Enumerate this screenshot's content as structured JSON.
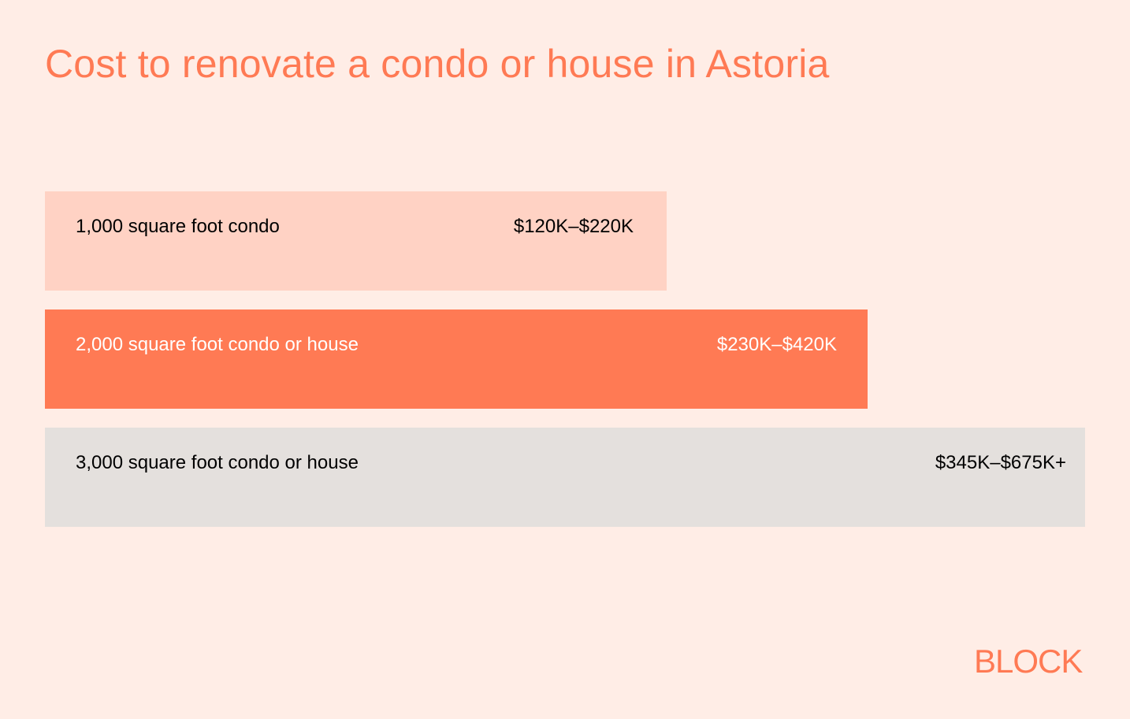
{
  "chart_data": {
    "type": "bar",
    "title": "Cost to renovate a condo or house in Astoria",
    "categories": [
      "1,000 square foot condo",
      "2,000 square foot condo or house",
      "3,000 square foot condo or house"
    ],
    "range_labels": [
      "$120K–$220K",
      "$230K–$420K",
      "$345K–$675K+"
    ],
    "series": [
      {
        "low": [
          120,
          230,
          345
        ],
        "high": [
          220,
          420,
          675
        ]
      }
    ],
    "units": "thousand USD",
    "bar_colors": [
      "#FFD2C4",
      "#FF7A54",
      "#E4E0DD"
    ],
    "text_colors": [
      "#000000",
      "#FFFFFF",
      "#000000"
    ],
    "grid": false
  },
  "background_color": "#FFEDE6",
  "logo": "BLOCK"
}
